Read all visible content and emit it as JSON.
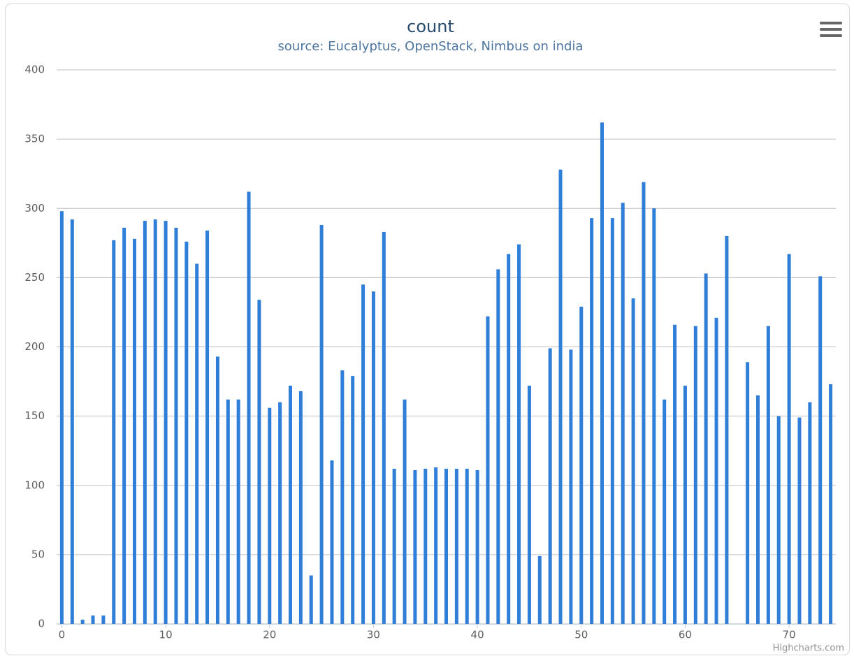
{
  "chart_data": {
    "type": "bar",
    "title": "count",
    "subtitle": "source: Eucalyptus, OpenStack, Nimbus on india",
    "credit": "Highcharts.com",
    "x": [
      0,
      1,
      2,
      3,
      4,
      5,
      6,
      7,
      8,
      9,
      10,
      11,
      12,
      13,
      14,
      15,
      16,
      17,
      18,
      19,
      20,
      21,
      22,
      23,
      24,
      25,
      26,
      27,
      28,
      29,
      30,
      31,
      32,
      33,
      34,
      35,
      36,
      37,
      38,
      39,
      40,
      41,
      42,
      43,
      44,
      45,
      46,
      47,
      48,
      49,
      50,
      51,
      52,
      53,
      54,
      55,
      56,
      57,
      58,
      59,
      60,
      61,
      62,
      63,
      64,
      65,
      66,
      67,
      68,
      69,
      70,
      71,
      72,
      73,
      74
    ],
    "values": [
      298,
      292,
      3,
      6,
      6,
      277,
      286,
      278,
      291,
      292,
      291,
      286,
      276,
      260,
      284,
      193,
      162,
      162,
      312,
      234,
      156,
      160,
      172,
      168,
      35,
      288,
      118,
      183,
      179,
      245,
      240,
      283,
      112,
      162,
      111,
      112,
      113,
      112,
      112,
      112,
      111,
      222,
      256,
      267,
      274,
      172,
      49,
      199,
      328,
      198,
      229,
      293,
      362,
      293,
      304,
      235,
      319,
      300,
      162,
      216,
      172,
      215,
      253,
      221,
      280,
      null,
      189,
      165,
      215,
      150,
      267,
      149,
      160,
      251,
      173
    ],
    "color": "#2f7ed8",
    "xlim": [
      -0.5,
      74.5
    ],
    "xticks": [
      0,
      10,
      20,
      30,
      40,
      50,
      60,
      70
    ],
    "ylim": [
      0,
      400
    ],
    "yticks": [
      0,
      50,
      100,
      150,
      200,
      250,
      300,
      350,
      400
    ],
    "grid": true
  }
}
